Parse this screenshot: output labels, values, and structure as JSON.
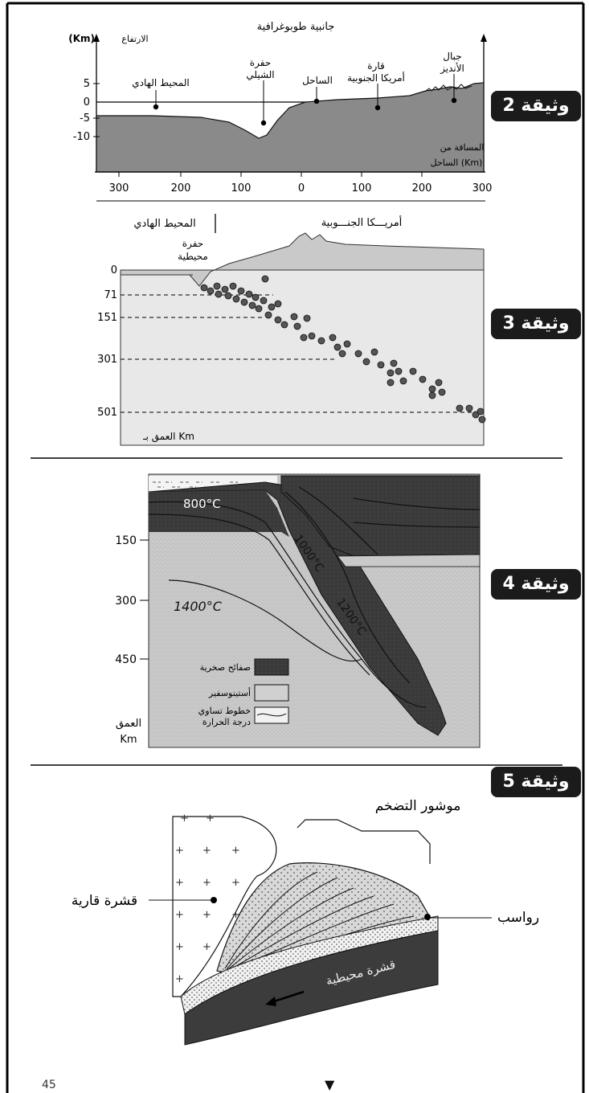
{
  "tags": {
    "doc2": "وثيقة 2",
    "doc3": "وثيقة 3",
    "doc4": "وثيقة 4",
    "doc5": "وثيقة 5"
  },
  "doc2": {
    "title": "جانبية طوبوغرافية",
    "y_axis_label": "الارتفاع (Km)",
    "x_axis_label_line1": "المسافة من",
    "x_axis_label_line2": "الساحل (Km)",
    "y_ticks": [
      "5",
      "0",
      "-5",
      "-10"
    ],
    "x_ticks": [
      "300",
      "200",
      "100",
      "0",
      "100",
      "200",
      "300"
    ],
    "labels": {
      "pacific": "المحيط الهادي",
      "trench_line1": "حفرة",
      "trench_line2": "الشيلي",
      "coast": "الساحل",
      "continent_line1": "قارة",
      "continent_line2": "أمريكا الجنوبية",
      "andes_line1": "جبال",
      "andes_line2": "الأنديز"
    }
  },
  "doc3": {
    "pacific": "المحيط الهادي",
    "america": "أمريـــكا الجنـــوبية",
    "trench_line1": "حفرة",
    "trench_line2": "محيطية",
    "depth_label": "العمق بـ Km",
    "depth_ticks": [
      "0",
      "71",
      "151",
      "301",
      "501"
    ]
  },
  "doc4": {
    "depth_ticks": [
      "150",
      "300",
      "450"
    ],
    "depth_label_line1": "العمق",
    "depth_label_line2": "Km",
    "isotherms": [
      "800°C",
      "1000°C",
      "1200°C",
      "1400°C"
    ],
    "legend": {
      "plates": "صفائح صخرية",
      "asthenosphere": "أستينوسفير",
      "isotherm_line1": "خطوط تساوي",
      "isotherm_line2": "درجة الحرارة"
    }
  },
  "doc5": {
    "prism": "موشور التضخم",
    "continental": "قشرة قارية",
    "sediments": "رواسب",
    "oceanic": "قشرة محيطية"
  },
  "footer": {
    "page": "45",
    "marker": "▼"
  }
}
